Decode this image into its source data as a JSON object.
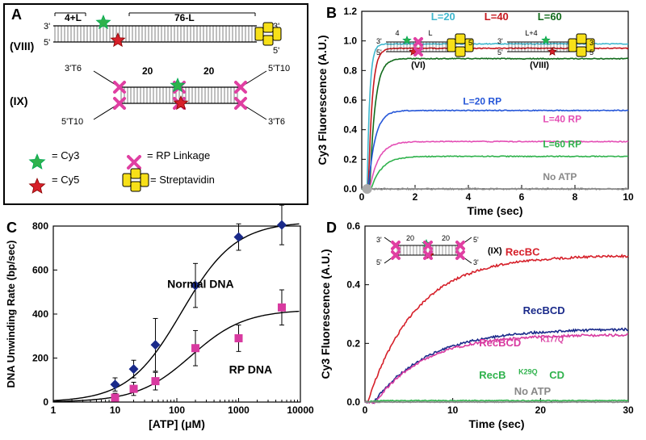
{
  "panelA": {
    "label": "A",
    "roman_viii": "(VIII)",
    "roman_ix": "(IX)",
    "span_4L": "4+L",
    "span_76L": "76-L",
    "end_3p": "3'",
    "end_5p": "5'",
    "t6_3p": "3'T6",
    "t6_3p_2": "3'T6",
    "t10_5p": "5'T10",
    "t10_5p_2": "5'T10",
    "twenty_1": "20",
    "twenty_2": "20",
    "leg_cy3": "= Cy3",
    "leg_cy5": "= Cy5",
    "leg_rp": "= RP Linkage",
    "leg_strep": "= Streptavidin",
    "colors": {
      "cy3": "#2fb24c",
      "cy5": "#d6202a",
      "rp": "#e03fa2",
      "strep": "#f7e018",
      "strep_stroke": "#000"
    }
  },
  "panelB": {
    "label": "B",
    "title_L20": "L=20",
    "title_L40": "L=40",
    "title_L60": "L=60",
    "lbl_L20RP": "L=20 RP",
    "lbl_L40RP": "L=40 RP",
    "lbl_L60RP": "L=60 RP",
    "lbl_noATP": "No ATP",
    "xlabel": "Time (sec)",
    "ylabel": "Cy3 Fluorescence (A.U.)",
    "xlim": [
      0,
      10
    ],
    "xticks": [
      0,
      2,
      4,
      6,
      8,
      10
    ],
    "ylim": [
      0,
      1.2
    ],
    "yticks": [
      0,
      0.2,
      0.4,
      0.6,
      0.8,
      1.0,
      1.2
    ],
    "inset_vi_lbl": "(VI)",
    "inset_viii_lbl": "(VIII)",
    "inset_3p": "3'",
    "inset_5p": "5'",
    "inset_4": "4",
    "inset_L": "L",
    "inset_L4": "L+4",
    "series": {
      "L20": {
        "color": "#3fb7ce",
        "plateau": 0.98,
        "k": 10,
        "t0": 0.2
      },
      "L40": {
        "color": "#c5181f",
        "plateau": 0.95,
        "k": 7,
        "t0": 0.25
      },
      "L60": {
        "color": "#126b1c",
        "plateau": 0.88,
        "k": 5,
        "t0": 0.3
      },
      "L20RP": {
        "color": "#2556d8",
        "plateau": 0.53,
        "k": 4,
        "t0": 0.25
      },
      "L40RP": {
        "color": "#e44fb5",
        "plateau": 0.32,
        "k": 3,
        "t0": 0.3
      },
      "L60RP": {
        "color": "#2fb24c",
        "plateau": 0.22,
        "k": 2.5,
        "t0": 0.35
      },
      "noATP": {
        "color": "#888888",
        "plateau": 0.0,
        "k": 1,
        "t0": 0
      }
    }
  },
  "panelC": {
    "label": "C",
    "xlabel": "[ATP] (μM)",
    "ylabel": "DNA Unwinding Rate (bp/sec)",
    "lbl_norm": "Normal DNA",
    "lbl_rp": "RP DNA",
    "xlim": [
      1,
      10000
    ],
    "xticks": [
      1,
      10,
      100,
      1000,
      10000
    ],
    "ylim": [
      0,
      800
    ],
    "yticks": [
      0,
      200,
      400,
      600,
      800
    ],
    "normal": {
      "color": "#1a2a8a",
      "marker": "diamond",
      "x": [
        10,
        20,
        45,
        200,
        1000,
        5000
      ],
      "y": [
        80,
        150,
        260,
        530,
        750,
        805
      ],
      "err": [
        30,
        40,
        120,
        100,
        60,
        90
      ]
    },
    "rp": {
      "color": "#d83aa0",
      "marker": "square",
      "x": [
        10,
        20,
        45,
        200,
        1000,
        5000
      ],
      "y": [
        20,
        60,
        95,
        245,
        290,
        430
      ],
      "err": [
        20,
        30,
        40,
        80,
        60,
        80
      ]
    },
    "fit_normal_vmax": 820,
    "fit_normal_km": 120,
    "fit_rp_vmax": 420,
    "fit_rp_km": 170
  },
  "panelD": {
    "label": "D",
    "xlabel": "Time (sec)",
    "ylabel": "Cy3 Fluorescence (A.U.)",
    "xlim": [
      0,
      30
    ],
    "xticks": [
      0,
      10,
      20,
      30
    ],
    "ylim": [
      0,
      0.6
    ],
    "yticks": [
      0,
      0.2,
      0.4,
      0.6
    ],
    "inset_ix_lbl": "(IX)",
    "inset_3p": "3'",
    "inset_5p": "5'",
    "inset_20a": "20",
    "inset_20b": "20",
    "lbl_recbc": "RecBC",
    "lbl_recbcd": "RecBCD",
    "lbl_recbcdK": "RecBCD",
    "lbl_recbcdK_sup": "K177Q",
    "lbl_recbkcd": "RecB",
    "lbl_recbkcd_sup": "K29Q",
    "lbl_recbkcd_suf": "CD",
    "lbl_noATP": "No ATP",
    "series": {
      "RecBC": {
        "color": "#d6202a",
        "plateau": 0.5,
        "k": 0.18,
        "t0": 0.3
      },
      "RecBCD": {
        "color": "#1a2a8a",
        "plateau": 0.25,
        "k": 0.16,
        "t0": 1.0
      },
      "RecBCDK": {
        "color": "#d83aa0",
        "plateau": 0.23,
        "k": 0.18,
        "t0": 1.2
      },
      "RecBKCD": {
        "color": "#2fb24c",
        "plateau": 0.005,
        "k": 1,
        "t0": 0
      },
      "noATP": {
        "color": "#888888",
        "plateau": 0.0,
        "k": 1,
        "t0": 0
      }
    }
  }
}
